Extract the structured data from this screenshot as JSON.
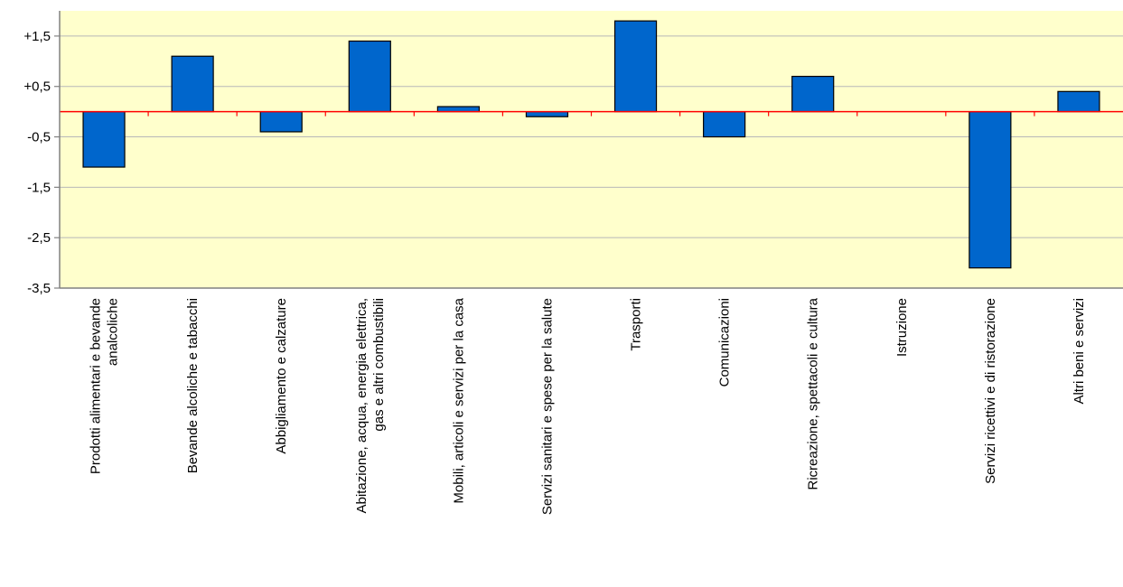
{
  "chart_data": {
    "type": "bar",
    "title": "",
    "xlabel": "",
    "ylabel": "",
    "ylim": [
      -3.5,
      2.0
    ],
    "yticks": [
      1.5,
      0.5,
      -0.5,
      -1.5,
      -2.5,
      -3.5
    ],
    "ytick_labels": [
      "+1,5",
      "+0,5",
      "-0,5",
      "-1,5",
      "-2,5",
      "-3,5"
    ],
    "grid": true,
    "legend": "none",
    "categories": [
      [
        "Prodotti alimentari e bevande",
        "analcoliche"
      ],
      [
        "Bevande alcoliche e tabacchi"
      ],
      [
        "Abbigliamento e calzature"
      ],
      [
        "Abitazione, acqua, energia elettrica,",
        "gas e altri combustibili"
      ],
      [
        "Mobili, articoli e servizi per la casa"
      ],
      [
        "Servizi sanitari e spese per la salute"
      ],
      [
        "Trasporti"
      ],
      [
        "Comunicazioni"
      ],
      [
        "Ricreazione, spettacoli e cultura"
      ],
      [
        "Istruzione"
      ],
      [
        "Servizi ricettivi e di ristorazione"
      ],
      [
        "Altri beni e servizi"
      ]
    ],
    "values": [
      -1.1,
      1.1,
      -0.4,
      1.4,
      0.1,
      -0.1,
      1.8,
      -0.5,
      0.7,
      0.0,
      -3.1,
      0.4
    ],
    "colors": {
      "bar": "#0066cc",
      "bar_stroke": "#000000",
      "plot_bg": "#ffffcc",
      "zero_line": "#ff0000",
      "grid": "#b8b8b8",
      "axis": "#808080"
    }
  }
}
